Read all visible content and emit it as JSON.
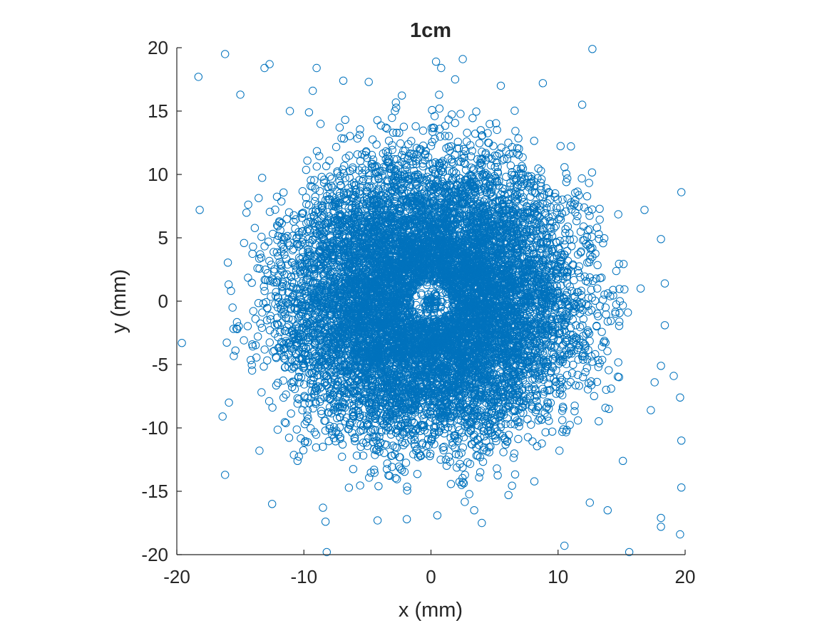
{
  "chart_data": {
    "type": "scatter",
    "title": "1cm",
    "xlabel": "x (mm)",
    "ylabel": "y (mm)",
    "xlim": [
      -20,
      20
    ],
    "ylim": [
      -20,
      20
    ],
    "xticks": [
      -20,
      -10,
      0,
      10,
      20
    ],
    "yticks": [
      -20,
      -15,
      -10,
      -5,
      0,
      5,
      10,
      15,
      20
    ],
    "xtick_labels": [
      "-20",
      "-10",
      "0",
      "10",
      "20"
    ],
    "ytick_labels": [
      "-20",
      "-15",
      "-10",
      "-5",
      "0",
      "5",
      "10",
      "15",
      "20"
    ],
    "grid": false,
    "legend": "none",
    "marker": "circle-open",
    "series_color": "#0072BD",
    "outer_sample_points": [
      [
        -18.3,
        17.7
      ],
      [
        -16.2,
        19.5
      ],
      [
        -15.0,
        16.3
      ],
      [
        -13.1,
        18.4
      ],
      [
        -12.7,
        18.7
      ],
      [
        -9.0,
        18.4
      ],
      [
        -9.3,
        16.6
      ],
      [
        12.7,
        19.9
      ],
      [
        0.4,
        18.9
      ],
      [
        0.8,
        18.4
      ],
      [
        2.5,
        19.1
      ],
      [
        -4.9,
        17.3
      ],
      [
        -6.9,
        17.4
      ],
      [
        1.9,
        17.5
      ],
      [
        5.5,
        17.0
      ],
      [
        8.8,
        17.2
      ],
      [
        11.9,
        15.5
      ],
      [
        -11.1,
        15.0
      ],
      [
        -9.6,
        14.9
      ],
      [
        19.7,
        8.6
      ],
      [
        -18.2,
        7.2
      ],
      [
        16.8,
        7.2
      ],
      [
        18.1,
        4.9
      ],
      [
        18.4,
        1.4
      ],
      [
        16.5,
        1.0
      ],
      [
        18.4,
        -1.9
      ],
      [
        -19.6,
        -3.3
      ],
      [
        19.1,
        -5.9
      ],
      [
        18.1,
        -5.1
      ],
      [
        17.6,
        -6.4
      ],
      [
        19.6,
        -7.6
      ],
      [
        17.3,
        -8.6
      ],
      [
        19.7,
        -11.0
      ],
      [
        15.1,
        -12.6
      ],
      [
        -16.2,
        -13.7
      ],
      [
        19.7,
        -14.7
      ],
      [
        -16.4,
        -9.1
      ],
      [
        -15.9,
        -8.0
      ],
      [
        -13.5,
        -11.8
      ],
      [
        -12.5,
        -16.0
      ],
      [
        -8.5,
        -16.3
      ],
      [
        -8.3,
        -17.4
      ],
      [
        12.5,
        -15.9
      ],
      [
        13.9,
        -16.5
      ],
      [
        18.1,
        -17.1
      ],
      [
        18.1,
        -17.8
      ],
      [
        19.6,
        -18.4
      ],
      [
        -8.2,
        -19.8
      ],
      [
        10.5,
        -19.3
      ],
      [
        15.6,
        -19.8
      ],
      [
        -4.2,
        -17.3
      ],
      [
        -1.9,
        -17.2
      ],
      [
        0.5,
        -16.9
      ],
      [
        4.0,
        -17.5
      ],
      [
        3.4,
        -16.5
      ],
      [
        6.1,
        -15.3
      ],
      [
        -10.5,
        -12.6
      ],
      [
        14.0,
        -8.5
      ]
    ]
  }
}
